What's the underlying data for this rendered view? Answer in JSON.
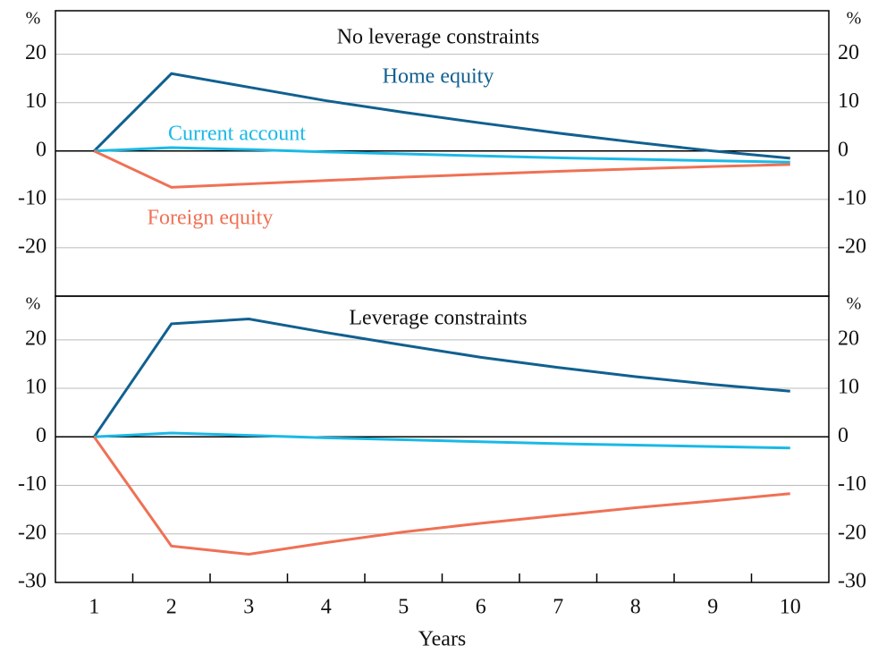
{
  "chart_data": [
    {
      "type": "line",
      "title": "No leverage constraints",
      "unit": "%",
      "ylim": [
        -30,
        29
      ],
      "yticks": [
        -20,
        -10,
        0,
        10,
        20
      ],
      "series": [
        {
          "name": "Home equity",
          "color": "#11608f",
          "values": [
            0,
            16,
            13.2,
            10.4,
            8,
            5.8,
            3.7,
            1.8,
            0,
            -1.5
          ]
        },
        {
          "name": "Current account",
          "color": "#1ab9e6",
          "values": [
            0,
            0.7,
            0.3,
            -0.2,
            -0.6,
            -1,
            -1.4,
            -1.7,
            -2,
            -2.3
          ]
        },
        {
          "name": "Foreign equity",
          "color": "#ef7155",
          "values": [
            0,
            -7.5,
            -6.8,
            -6.1,
            -5.4,
            -4.8,
            -4.2,
            -3.7,
            -3.2,
            -2.8
          ]
        }
      ]
    },
    {
      "type": "line",
      "title": "Leverage constraints",
      "unit": "%",
      "xlabel": "Years",
      "categories": [
        "1",
        "2",
        "3",
        "4",
        "5",
        "6",
        "7",
        "8",
        "9",
        "10"
      ],
      "ylim": [
        -30,
        29
      ],
      "yticks": [
        -30,
        -20,
        -10,
        0,
        10,
        20
      ],
      "series": [
        {
          "color": "#11608f",
          "values": [
            0,
            23.3,
            24.3,
            21.5,
            18.9,
            16.4,
            14.3,
            12.4,
            10.8,
            9.4
          ]
        },
        {
          "color": "#1ab9e6",
          "values": [
            0,
            0.8,
            0.3,
            -0.2,
            -0.6,
            -1,
            -1.4,
            -1.7,
            -2,
            -2.3
          ]
        },
        {
          "color": "#ef7155",
          "values": [
            0,
            -22.5,
            -24.2,
            -21.8,
            -19.6,
            -17.8,
            -16.2,
            -14.6,
            -13.2,
            -11.7
          ]
        }
      ]
    }
  ]
}
